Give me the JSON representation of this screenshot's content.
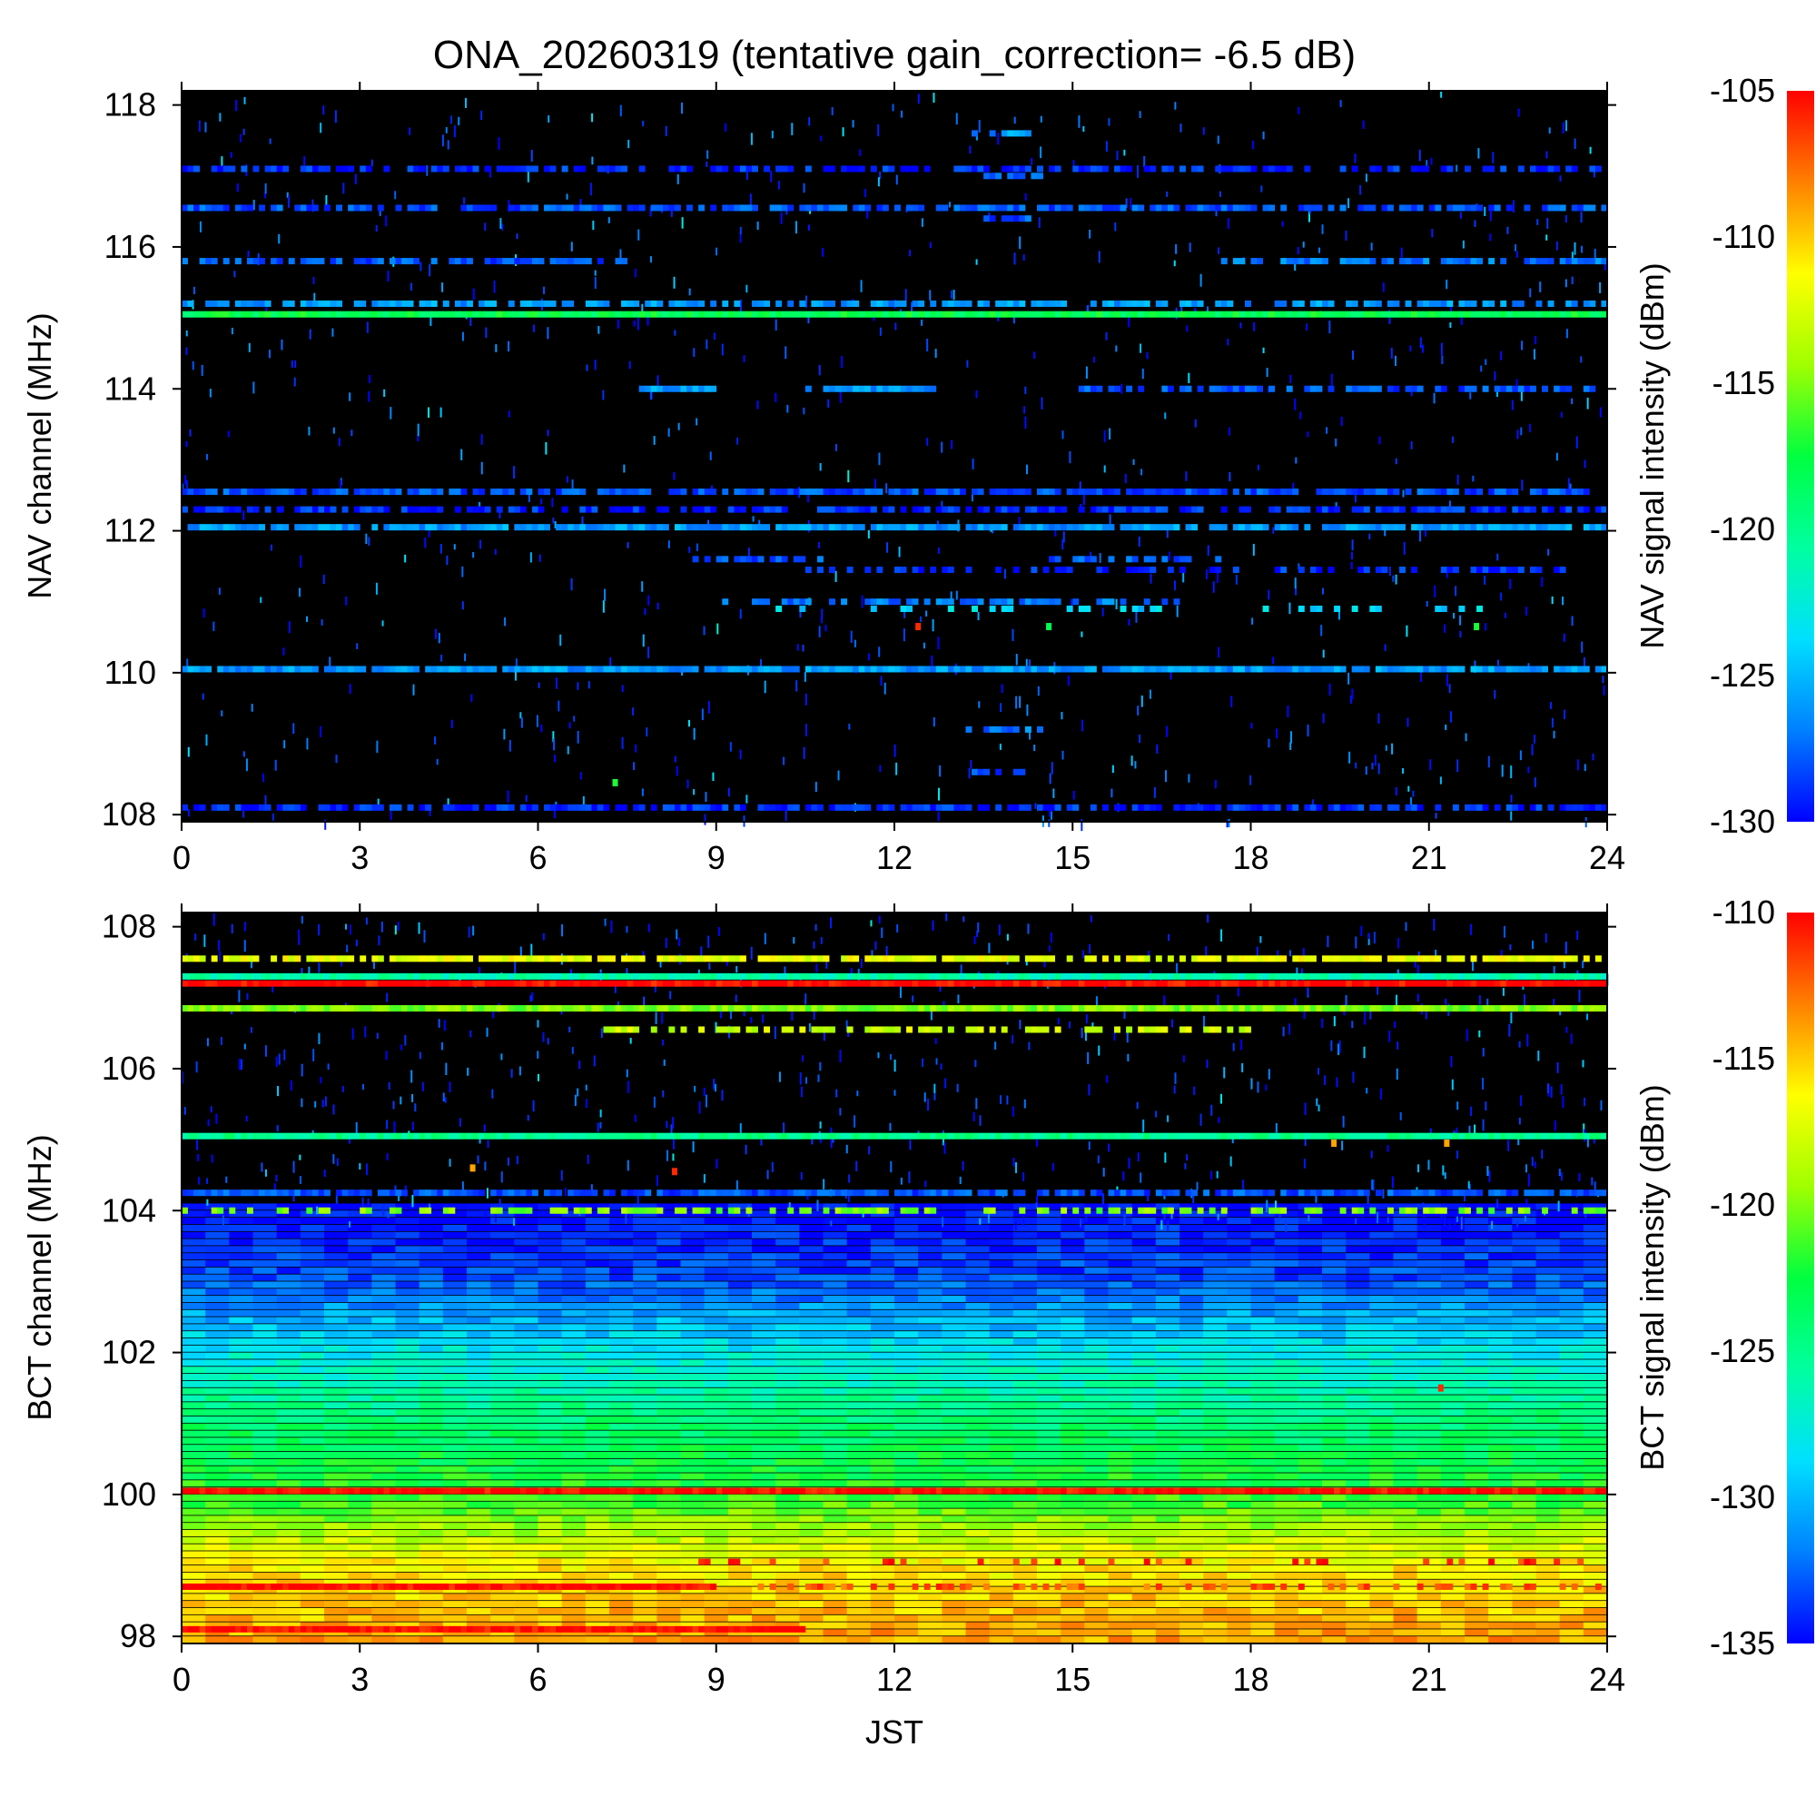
{
  "title": "ONA_20260319 (tentative gain_correction= -6.5 dB)",
  "colors": {
    "background": "#000000",
    "colormap": [
      "#0000ff",
      "#0080ff",
      "#00e0ff",
      "#00ffa0",
      "#00ff40",
      "#a0ff00",
      "#ffff00",
      "#ff8000",
      "#ff0000"
    ]
  },
  "chart_data": [
    {
      "type": "heatmap",
      "xlabel": "",
      "ylabel": "NAV channel (MHz)",
      "colorbar_label": "NAV signal intensity (dBm)",
      "x_ticks": [
        "0",
        "3",
        "6",
        "9",
        "12",
        "15",
        "18",
        "21",
        "24"
      ],
      "y_ticks": [
        "108",
        "110",
        "112",
        "114",
        "116",
        "118"
      ],
      "colorbar_ticks": [
        "-105",
        "-110",
        "-115",
        "-120",
        "-125",
        "-130"
      ],
      "xlim": [
        0,
        24
      ],
      "ylim": [
        107.9,
        118.2
      ],
      "clim": [
        -130,
        -105
      ],
      "background_level_dbm": "below -130",
      "bands": [
        {
          "freq": 108.1,
          "start": 0,
          "end": 24,
          "level": -129,
          "density": 0.8
        },
        {
          "freq": 110.05,
          "start": 0,
          "end": 24,
          "level": -126,
          "density": 0.95
        },
        {
          "freq": 112.05,
          "start": 0,
          "end": 24,
          "level": -126,
          "density": 0.9
        },
        {
          "freq": 112.3,
          "start": 0,
          "end": 24,
          "level": -129,
          "density": 0.7
        },
        {
          "freq": 112.55,
          "start": 0,
          "end": 24,
          "level": -128,
          "density": 0.8
        },
        {
          "freq": 115.05,
          "start": 0,
          "end": 24,
          "level": -118,
          "density": 1.0
        },
        {
          "freq": 115.2,
          "start": 0,
          "end": 24,
          "level": -126,
          "density": 0.7
        },
        {
          "freq": 115.8,
          "start": 0,
          "end": 7.5,
          "level": -128,
          "density": 0.7
        },
        {
          "freq": 115.8,
          "start": 17.5,
          "end": 24,
          "level": -127,
          "density": 0.8
        },
        {
          "freq": 116.55,
          "start": 0,
          "end": 24,
          "level": -128,
          "density": 0.75
        },
        {
          "freq": 117.1,
          "start": 0,
          "end": 24,
          "level": -129,
          "density": 0.6
        },
        {
          "freq": 114.0,
          "start": 7.5,
          "end": 9,
          "level": -126,
          "density": 0.8
        },
        {
          "freq": 114.0,
          "start": 10.5,
          "end": 12.7,
          "level": -126,
          "density": 0.9
        },
        {
          "freq": 114.0,
          "start": 15,
          "end": 24,
          "level": -128,
          "density": 0.6
        },
        {
          "freq": 111.6,
          "start": 8.5,
          "end": 11,
          "level": -128,
          "density": 0.6
        },
        {
          "freq": 111.6,
          "start": 14.5,
          "end": 17.5,
          "level": -128,
          "density": 0.6
        },
        {
          "freq": 111.45,
          "start": 10.5,
          "end": 23.5,
          "level": -129,
          "density": 0.5
        },
        {
          "freq": 111.0,
          "start": 9,
          "end": 17,
          "level": -127,
          "density": 0.6
        },
        {
          "freq": 110.9,
          "start": 10,
          "end": 22,
          "level": -124,
          "density": 0.3
        },
        {
          "freq": 117.6,
          "start": 13.3,
          "end": 14.3,
          "level": -126,
          "density": 0.9
        },
        {
          "freq": 117.0,
          "start": 13.5,
          "end": 14.5,
          "level": -127,
          "density": 0.8
        },
        {
          "freq": 116.4,
          "start": 13.5,
          "end": 14.3,
          "level": -128,
          "density": 0.7
        },
        {
          "freq": 109.2,
          "start": 13.2,
          "end": 14.5,
          "level": -127,
          "density": 0.8
        },
        {
          "freq": 108.6,
          "start": 13.3,
          "end": 14.2,
          "level": -128,
          "density": 0.7
        }
      ],
      "spots": [
        {
          "t": 12.4,
          "freq": 110.65,
          "level": -106
        },
        {
          "t": 14.6,
          "freq": 110.65,
          "level": -118
        },
        {
          "t": 21.8,
          "freq": 110.65,
          "level": -117
        },
        {
          "t": 7.3,
          "freq": 108.45,
          "level": -117
        }
      ]
    },
    {
      "type": "heatmap",
      "xlabel": "JST",
      "ylabel": "BCT channel (MHz)",
      "colorbar_label": "BCT signal intensity (dBm)",
      "x_ticks": [
        "0",
        "3",
        "6",
        "9",
        "12",
        "15",
        "18",
        "21",
        "24"
      ],
      "y_ticks": [
        "98",
        "100",
        "102",
        "104",
        "106",
        "108"
      ],
      "colorbar_ticks": [
        "-110",
        "-115",
        "-120",
        "-125",
        "-130",
        "-135"
      ],
      "xlim": [
        0,
        24
      ],
      "ylim": [
        97.9,
        108.2
      ],
      "clim": [
        -135,
        -110
      ],
      "noise_floor_profile": [
        {
          "freq": 98.0,
          "level": -114
        },
        {
          "freq": 99.0,
          "level": -116
        },
        {
          "freq": 100.0,
          "level": -122
        },
        {
          "freq": 101.0,
          "level": -124
        },
        {
          "freq": 102.0,
          "level": -128
        },
        {
          "freq": 103.0,
          "level": -133
        },
        {
          "freq": 104.0,
          "level": -135
        }
      ],
      "bands": [
        {
          "freq": 100.05,
          "start": 0,
          "end": 24,
          "level": -110,
          "density": 1.0
        },
        {
          "freq": 98.1,
          "start": 0,
          "end": 10.5,
          "level": -110,
          "density": 1.0
        },
        {
          "freq": 98.7,
          "start": 0,
          "end": 9,
          "level": -110,
          "density": 1.0
        },
        {
          "freq": 98.7,
          "start": 9,
          "end": 24,
          "level": -112,
          "density": 0.35
        },
        {
          "freq": 99.05,
          "start": 8.5,
          "end": 24,
          "level": -111,
          "density": 0.3
        },
        {
          "freq": 107.2,
          "start": 0,
          "end": 24,
          "level": -110,
          "density": 1.0
        },
        {
          "freq": 107.3,
          "start": 0,
          "end": 24,
          "level": -126,
          "density": 1.0
        },
        {
          "freq": 106.85,
          "start": 0,
          "end": 24,
          "level": -120,
          "density": 1.0
        },
        {
          "freq": 107.55,
          "start": 0,
          "end": 24,
          "level": -117,
          "density": 0.8
        },
        {
          "freq": 106.55,
          "start": 7,
          "end": 18,
          "level": -118,
          "density": 0.6
        },
        {
          "freq": 105.05,
          "start": 0,
          "end": 24,
          "level": -125,
          "density": 1.0
        },
        {
          "freq": 104.25,
          "start": 0,
          "end": 24,
          "level": -133,
          "density": 0.9
        },
        {
          "freq": 104.0,
          "start": 0,
          "end": 24,
          "level": -120,
          "density": 0.5
        }
      ],
      "spots": [
        {
          "t": 4.9,
          "freq": 104.6,
          "level": -114
        },
        {
          "t": 8.3,
          "freq": 104.55,
          "level": -111
        },
        {
          "t": 19.4,
          "freq": 104.95,
          "level": -114
        },
        {
          "t": 21.3,
          "freq": 104.95,
          "level": -114
        },
        {
          "t": 21.2,
          "freq": 101.5,
          "level": -111
        }
      ]
    }
  ]
}
